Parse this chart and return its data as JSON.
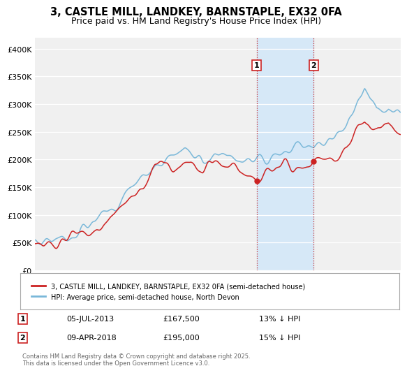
{
  "title": "3, CASTLE MILL, LANDKEY, BARNSTAPLE, EX32 0FA",
  "subtitle": "Price paid vs. HM Land Registry's House Price Index (HPI)",
  "ylim": [
    0,
    420000
  ],
  "yticks": [
    0,
    50000,
    100000,
    150000,
    200000,
    250000,
    300000,
    350000,
    400000
  ],
  "ytick_labels": [
    "£0",
    "£50K",
    "£100K",
    "£150K",
    "£200K",
    "£250K",
    "£300K",
    "£350K",
    "£400K"
  ],
  "hpi_color": "#7ab8d9",
  "price_color": "#cc2222",
  "shaded_color": "#d6e8f7",
  "vline_color": "#cc2222",
  "sale1_x": 2013.5,
  "sale2_x": 2018.25,
  "sale1_price": 167500,
  "sale2_price": 195000,
  "sale1_date": "05-JUL-2013",
  "sale2_date": "09-APR-2018",
  "sale1_note": "13% ↓ HPI",
  "sale2_note": "15% ↓ HPI",
  "legend1": "3, CASTLE MILL, LANDKEY, BARNSTAPLE, EX32 0FA (semi-detached house)",
  "legend2": "HPI: Average price, semi-detached house, North Devon",
  "footer": "Contains HM Land Registry data © Crown copyright and database right 2025.\nThis data is licensed under the Open Government Licence v3.0.",
  "title_fontsize": 10.5,
  "subtitle_fontsize": 9,
  "bg_color": "#f0f0f0",
  "xmin": 1995,
  "xmax": 2025.5
}
